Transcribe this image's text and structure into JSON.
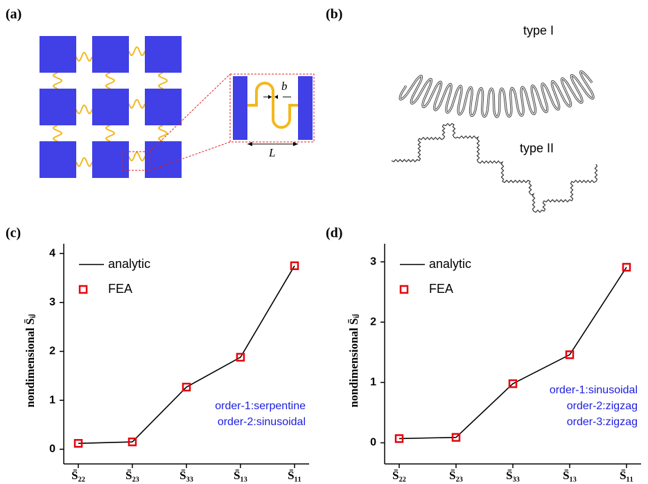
{
  "panels": [
    "(a)",
    "(b)",
    "(c)",
    "(d)"
  ],
  "diagram_a": {
    "dimension_b": "b",
    "dimension_L": "L"
  },
  "diagram_b": {
    "labels": [
      "type I",
      "type II"
    ]
  },
  "chart_data": [
    {
      "type": "line",
      "y_label": "nondimensional S̄ᵢⱼ",
      "categories": [
        "S̄₂₂",
        "S̄₂₃",
        "S̄₃₃",
        "S̄₁₃",
        "S̄₁₁"
      ],
      "series": [
        {
          "name": "analytic",
          "color": "#000000",
          "mode": "line",
          "values": [
            0.12,
            0.15,
            1.27,
            1.88,
            3.75
          ]
        },
        {
          "name": "FEA",
          "color": "#e8000b",
          "mode": "markers",
          "values": [
            0.12,
            0.15,
            1.27,
            1.88,
            3.75
          ]
        }
      ],
      "ylim": [
        -0.3,
        4.2
      ],
      "yticks": [
        0,
        1,
        2,
        3,
        4
      ],
      "annotations": [
        "order-1:serpentine",
        "order-2:sinusoidal"
      ]
    },
    {
      "type": "line",
      "y_label": "nondimensional S̄ᵢⱼ",
      "categories": [
        "S̄₂₂",
        "S̄₂₃",
        "S̄₃₃",
        "S̄₁₃",
        "S̄₁₁"
      ],
      "series": [
        {
          "name": "analytic",
          "color": "#000000",
          "mode": "line",
          "values": [
            0.07,
            0.09,
            0.98,
            1.46,
            2.91
          ]
        },
        {
          "name": "FEA",
          "color": "#e8000b",
          "mode": "markers",
          "values": [
            0.07,
            0.09,
            0.98,
            1.46,
            2.91
          ]
        }
      ],
      "ylim": [
        -0.35,
        3.3
      ],
      "yticks": [
        0,
        1,
        2,
        3
      ],
      "annotations": [
        "order-1:sinusoidal",
        "order-2:zigzag",
        "order-3:zigzag"
      ]
    }
  ]
}
